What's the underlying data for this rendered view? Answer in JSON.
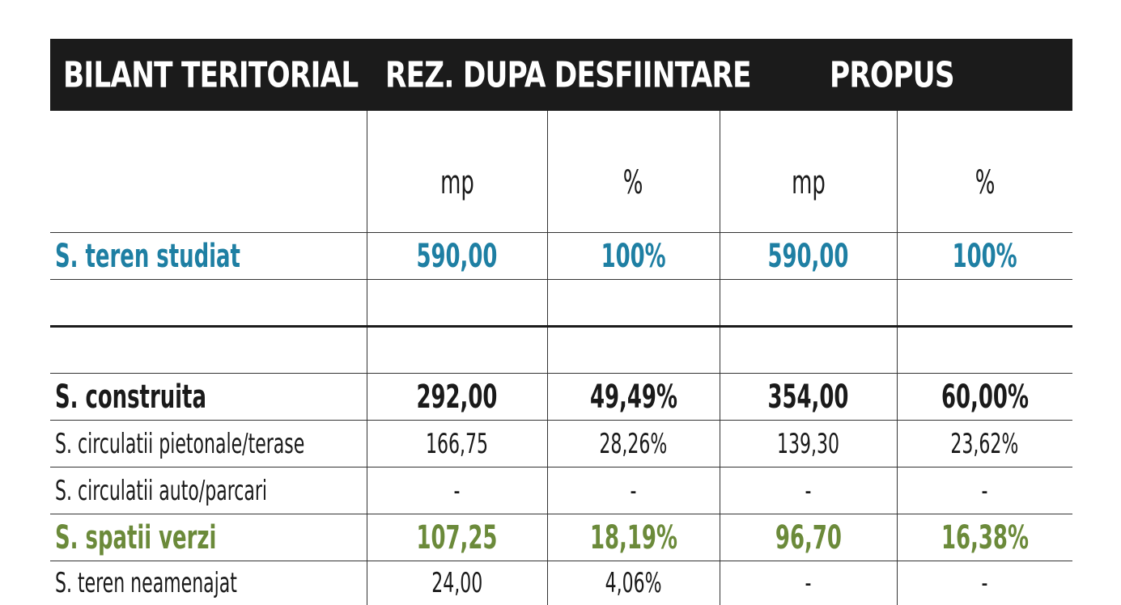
{
  "header": {
    "col1": "BILANT TERITORIAL",
    "col2": "REZ. DUPA DESFIINTARE",
    "col3": "PROPUS"
  },
  "units": [
    "mp",
    "%",
    "mp",
    "%"
  ],
  "rows": {
    "teren_studiat": {
      "label": "S. teren studiat",
      "values": [
        "590,00",
        "100%",
        "590,00",
        "100%"
      ]
    },
    "construita": {
      "label": "S. construita",
      "values": [
        "292,00",
        "49,49%",
        "354,00",
        "60,00%"
      ]
    },
    "circ_pietonale": {
      "label": "S. circulatii pietonale/terase",
      "values": [
        "166,75",
        "28,26%",
        "139,30",
        "23,62%"
      ]
    },
    "circ_auto": {
      "label": "S. circulatii auto/parcari",
      "values": [
        "-",
        "-",
        "-",
        "-"
      ]
    },
    "spatii_verzi": {
      "label": "S. spatii verzi",
      "values": [
        "107,25",
        "18,19%",
        "96,70",
        "16,38%"
      ]
    },
    "neamenajat": {
      "label": "S. teren neamenajat",
      "values": [
        "24,00",
        "4,06%",
        "-",
        "-"
      ]
    }
  },
  "colors": {
    "header_bg": "#1b1b1b",
    "total": "#1e7fa3",
    "green": "#6b8a3a"
  }
}
